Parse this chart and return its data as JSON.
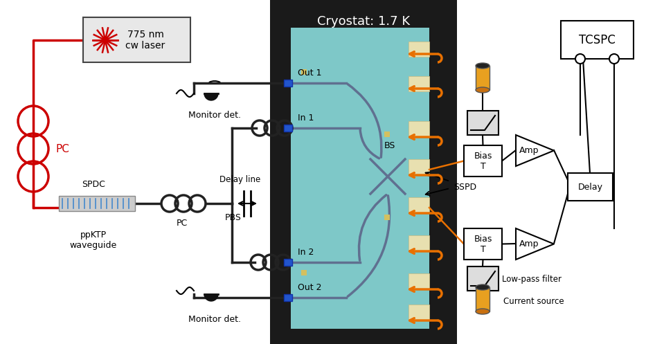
{
  "bg_color": "#ffffff",
  "cryostat_bg": "#1a1a1a",
  "chip_bg": "#7ec8c8",
  "chip_edge_bg": "#e8e0b0",
  "laser_box_color": "#e0e0e0",
  "fiber_color_red": "#cc0000",
  "fiber_color_black": "#222222",
  "waveguide_color": "#5588aa",
  "orange_arrow_color": "#e87000",
  "cryostat_title": "Cryostat: 1.7 K",
  "laser_label": "775 nm\ncw laser",
  "labels": {
    "PC_top": "PC",
    "PC_bottom": "PC",
    "SPDC": "SPDC",
    "ppKTP": "ppKTP\nwaveguide",
    "PBS": "PBS",
    "delay_line": "Delay line",
    "monitor_top": "Monitor det.",
    "monitor_bot": "Monitor det.",
    "Out1": "Out 1",
    "In1": "In 1",
    "BS": "BS",
    "In2": "In 2",
    "Out2": "Out 2",
    "SSPD": "SSPD",
    "BiasT1": "Bias\nT",
    "BiasT2": "Bias\nT",
    "Amp1": "Amp",
    "Amp2": "Amp",
    "Delay": "Delay",
    "LPF": "Low-pass filter",
    "CurrentSource": "Current source",
    "TCSPC": "TCSPC"
  }
}
